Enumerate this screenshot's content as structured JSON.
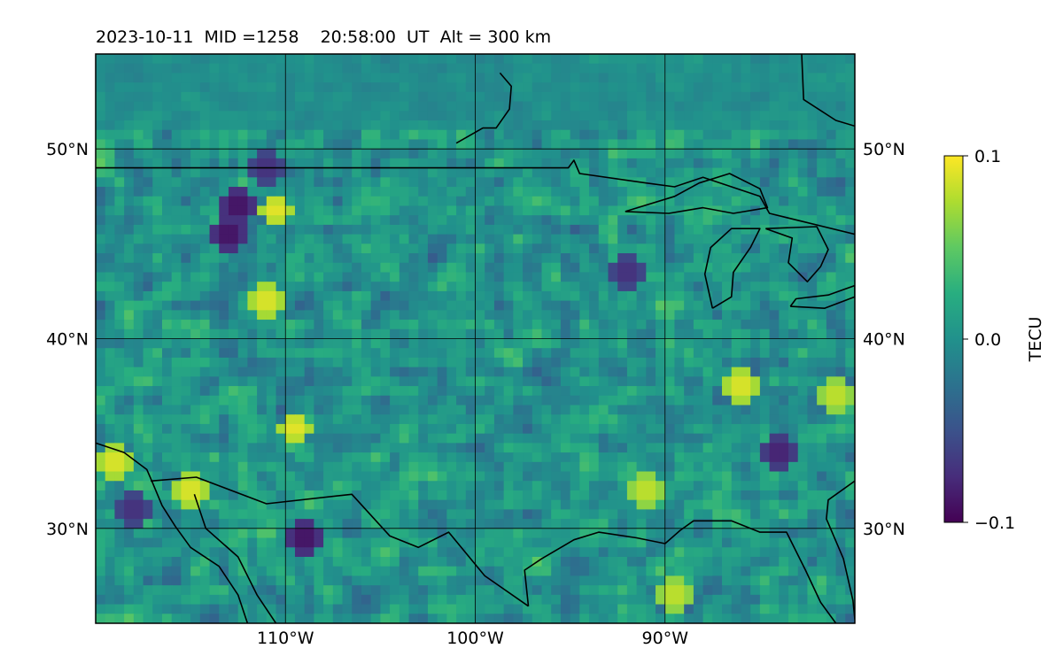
{
  "title": "2023-10-11  MID =1258    20:58:00  UT  Alt = 300 km",
  "chart_data": {
    "type": "heatmap",
    "projection": "PlateCarree",
    "lon_range": [
      -120,
      -80
    ],
    "lat_range": [
      25,
      55
    ],
    "cell_deg": 0.5,
    "x_ticks": [
      {
        "lon": -110,
        "label": "110°W"
      },
      {
        "lon": -100,
        "label": "100°W"
      },
      {
        "lon": -90,
        "label": "90°W"
      }
    ],
    "y_ticks": [
      {
        "lat": 30,
        "label": "30°N"
      },
      {
        "lat": 40,
        "label": "40°N"
      },
      {
        "lat": 50,
        "label": "50°N"
      }
    ],
    "gridlines": true,
    "colormap": "viridis",
    "colorbar": {
      "label": "TECU",
      "vmin": -0.1,
      "vmax": 0.1,
      "ticks": [
        {
          "value": 0.1,
          "label": "0.1"
        },
        {
          "value": 0.0,
          "label": "0.0"
        },
        {
          "value": -0.1,
          "label": "−0.1"
        }
      ]
    },
    "hotspots": [
      {
        "lon": -110.5,
        "lat": 46.8,
        "value": 0.1
      },
      {
        "lon": -111,
        "lat": 42,
        "value": 0.1
      },
      {
        "lon": -109.5,
        "lat": 35.3,
        "value": 0.1
      },
      {
        "lon": -115,
        "lat": 32,
        "value": 0.1
      },
      {
        "lon": -119,
        "lat": 33.5,
        "value": 0.1
      },
      {
        "lon": -86,
        "lat": 37.5,
        "value": 0.1
      },
      {
        "lon": -81,
        "lat": 37,
        "value": 0.09
      },
      {
        "lon": -91,
        "lat": 32,
        "value": 0.09
      },
      {
        "lon": -89.5,
        "lat": 26.5,
        "value": 0.09
      },
      {
        "lon": -112.5,
        "lat": 47,
        "value": -0.1
      },
      {
        "lon": -113,
        "lat": 45.5,
        "value": -0.1
      },
      {
        "lon": -109,
        "lat": 29.5,
        "value": -0.1
      },
      {
        "lon": -84,
        "lat": 34,
        "value": -0.09
      },
      {
        "lon": -111,
        "lat": 49,
        "value": -0.08
      },
      {
        "lon": -92,
        "lat": 43.5,
        "value": -0.08
      },
      {
        "lon": -118,
        "lat": 31,
        "value": -0.08
      }
    ],
    "boundaries": [
      {
        "name": "us-canada-border",
        "points": [
          [
            -120,
            49
          ],
          [
            -95.1,
            49
          ],
          [
            -94.8,
            49.4
          ],
          [
            -94.5,
            48.7
          ],
          [
            -91,
            48.2
          ],
          [
            -89.5,
            48
          ],
          [
            -88,
            48.5
          ],
          [
            -85,
            47.5
          ],
          [
            -84.5,
            46.6
          ],
          [
            -80,
            45.5
          ]
        ]
      },
      {
        "name": "hudson-bay-coast",
        "points": [
          [
            -101,
            50.3
          ],
          [
            -99.6,
            51.1
          ],
          [
            -98.9,
            51.1
          ],
          [
            -98.2,
            52.1
          ],
          [
            -98.1,
            53.3
          ],
          [
            -98.7,
            54
          ]
        ]
      },
      {
        "name": "hudson-bay-east",
        "points": [
          [
            -82.8,
            55
          ],
          [
            -82.7,
            52.6
          ],
          [
            -81,
            51.5
          ],
          [
            -80,
            51.2
          ]
        ]
      },
      {
        "name": "lake-superior",
        "points": [
          [
            -92.1,
            46.7
          ],
          [
            -89.5,
            47.5
          ],
          [
            -88.2,
            48.2
          ],
          [
            -86.6,
            48.7
          ],
          [
            -85,
            47.9
          ],
          [
            -84.6,
            46.9
          ],
          [
            -86.4,
            46.6
          ],
          [
            -88,
            46.9
          ],
          [
            -89.8,
            46.6
          ],
          [
            -92.1,
            46.7
          ]
        ]
      },
      {
        "name": "lake-michigan",
        "points": [
          [
            -87.5,
            41.6
          ],
          [
            -87.9,
            43.4
          ],
          [
            -87.6,
            44.8
          ],
          [
            -86.5,
            45.8
          ],
          [
            -85,
            45.8
          ],
          [
            -85.5,
            44.8
          ],
          [
            -86.4,
            43.5
          ],
          [
            -86.5,
            42.2
          ],
          [
            -87.5,
            41.6
          ]
        ]
      },
      {
        "name": "lake-huron",
        "points": [
          [
            -84.7,
            45.8
          ],
          [
            -83.3,
            45.3
          ],
          [
            -83.5,
            44
          ],
          [
            -82.5,
            43
          ],
          [
            -81.8,
            43.8
          ],
          [
            -81.4,
            44.7
          ],
          [
            -82,
            45.9
          ],
          [
            -84.7,
            45.8
          ]
        ]
      },
      {
        "name": "lake-erie",
        "points": [
          [
            -83.4,
            41.7
          ],
          [
            -81.6,
            41.6
          ],
          [
            -80,
            42.2
          ],
          [
            -80,
            42.8
          ],
          [
            -81.4,
            42.3
          ],
          [
            -83.1,
            42.1
          ],
          [
            -83.4,
            41.7
          ]
        ]
      },
      {
        "name": "pacific-coast",
        "points": [
          [
            -120,
            34.5
          ],
          [
            -118.5,
            34
          ],
          [
            -117.3,
            33.1
          ],
          [
            -117,
            32.4
          ],
          [
            -116.5,
            31.2
          ],
          [
            -115.8,
            30.1
          ],
          [
            -115,
            29
          ],
          [
            -113.5,
            28
          ],
          [
            -112.5,
            26.5
          ],
          [
            -112,
            25
          ]
        ]
      },
      {
        "name": "us-mexico-border",
        "points": [
          [
            -117.1,
            32.5
          ],
          [
            -114.7,
            32.7
          ],
          [
            -111,
            31.3
          ],
          [
            -106.5,
            31.8
          ],
          [
            -104.5,
            29.6
          ],
          [
            -103,
            29
          ],
          [
            -101.4,
            29.8
          ],
          [
            -99.5,
            27.5
          ],
          [
            -97.2,
            25.9
          ]
        ]
      },
      {
        "name": "gulf-of-california",
        "points": [
          [
            -114.8,
            31.8
          ],
          [
            -114.2,
            30
          ],
          [
            -112.5,
            28.5
          ],
          [
            -111.5,
            26.5
          ],
          [
            -110.5,
            25
          ]
        ]
      },
      {
        "name": "gulf-coast",
        "points": [
          [
            -97.2,
            25.9
          ],
          [
            -97.4,
            27.8
          ],
          [
            -96.5,
            28.4
          ],
          [
            -94.8,
            29.4
          ],
          [
            -93.5,
            29.8
          ],
          [
            -91.5,
            29.5
          ],
          [
            -90,
            29.2
          ],
          [
            -89.2,
            29.9
          ],
          [
            -88.5,
            30.4
          ],
          [
            -86.5,
            30.4
          ],
          [
            -85,
            29.8
          ],
          [
            -83.6,
            29.8
          ],
          [
            -82.6,
            27.8
          ],
          [
            -81.8,
            26.1
          ],
          [
            -81,
            25
          ]
        ]
      },
      {
        "name": "atlantic-coast",
        "points": [
          [
            -80,
            32.5
          ],
          [
            -81.4,
            31.5
          ],
          [
            -81.5,
            30.5
          ],
          [
            -80.6,
            28.4
          ],
          [
            -80.1,
            26.2
          ],
          [
            -80,
            25.2
          ]
        ]
      }
    ]
  }
}
